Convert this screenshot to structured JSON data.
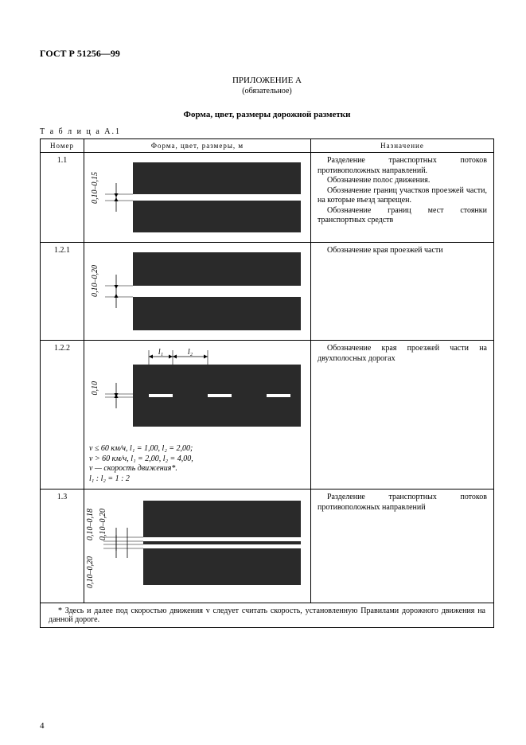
{
  "doc_id": "ГОСТ Р 51256—99",
  "appendix": {
    "title": "ПРИЛОЖЕНИЕ А",
    "sub": "(обязательное)"
  },
  "section_title": "Форма, цвет, размеры дорожной разметки",
  "table_label": "Т а б л и ц а   А.1",
  "headers": {
    "num": "Номер",
    "fig": "Форма, цвет, размеры, м",
    "desc": "Назначение"
  },
  "rows": [
    {
      "num": "1.1",
      "dim_v": "0,10–0,15",
      "desc_lines": [
        "Разделение транспортных потоков противоположных направлений.",
        "Обозначение полос движения.",
        "Обозначение границ участков проезжей части, на которые въезд запрещен.",
        "Обозначение границ мест стоянки транспортных средств"
      ],
      "fig": {
        "type": "solid-center-line",
        "block_color": "#2a2a2a",
        "line_color": "#ffffff",
        "gap": 8
      }
    },
    {
      "num": "1.2.1",
      "dim_v": "0,10–0,20",
      "desc_lines": [
        "Обозначение края проезжей части"
      ],
      "fig": {
        "type": "two-blocks-gap",
        "block_color": "#2a2a2a",
        "gap": 14
      }
    },
    {
      "num": "1.2.2",
      "dim_v": "0,10",
      "top_labels": {
        "l1": "l₁",
        "l2": "l₂"
      },
      "notes": [
        "v ≤ 60 км/ч, l₁ = 1,00, l₂ = 2,00;",
        "v > 60 км/ч, l₁ = 2,00, l₂ = 4,00,",
        "v — скорость движения*.",
        "l₁ : l₂ = 1 : 2"
      ],
      "desc_lines": [
        "Обозначение края проезжей части на двухполосных дорогах"
      ],
      "fig": {
        "type": "dashed-center",
        "block_color": "#2a2a2a",
        "dash_color": "#ffffff",
        "dash_w": 30,
        "gap_w": 44
      }
    },
    {
      "num": "1.3",
      "dim_v1": "0,10–0,18",
      "dim_v2": "0,10–0,20",
      "dim_v3": "0,10–0,20",
      "desc_lines": [
        "Разделение транспортных потоков противоположных направлений"
      ],
      "fig": {
        "type": "double-line",
        "block_color": "#2a2a2a",
        "line_color": "#ffffff"
      }
    }
  ],
  "footnote": "* Здесь и далее под скоростью движения v следует считать скорость, установленную Правилами дорожного движения на данной дороге.",
  "page_number": "4"
}
